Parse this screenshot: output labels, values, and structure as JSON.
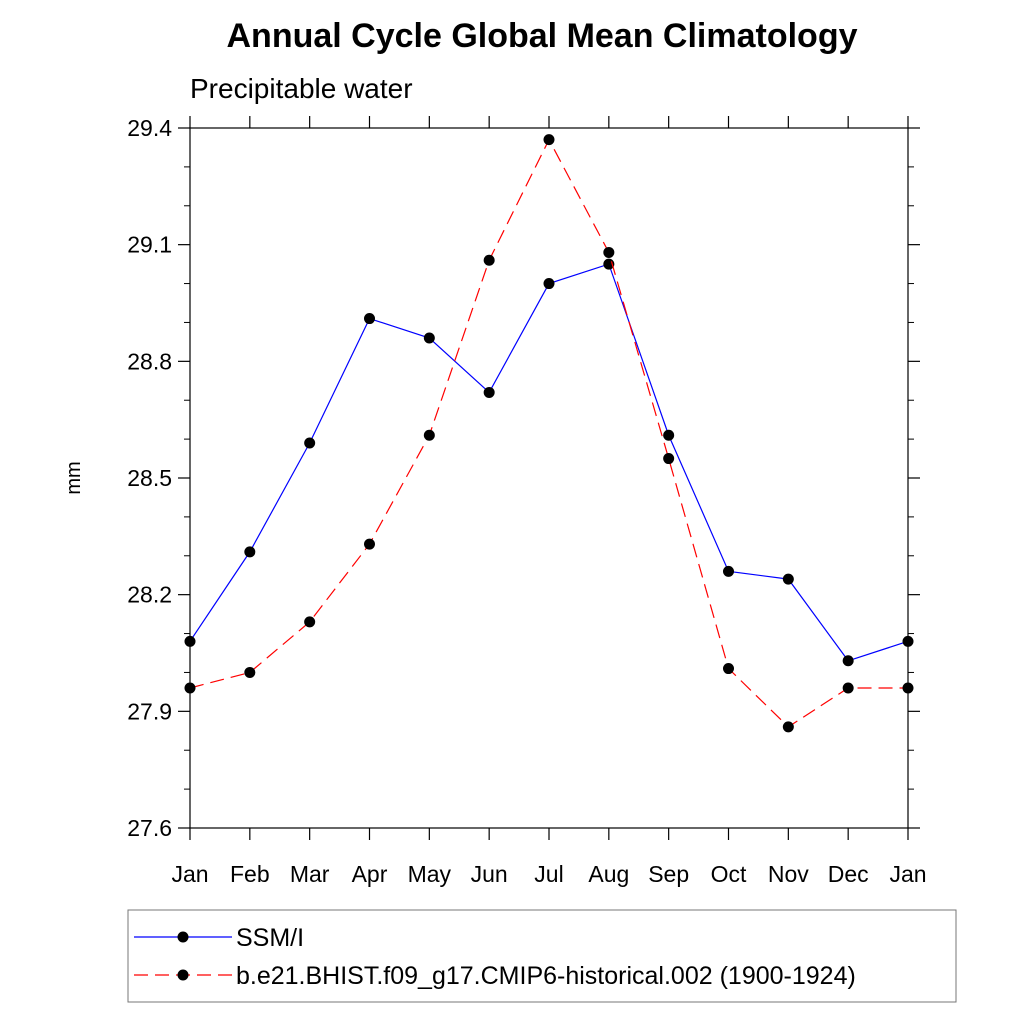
{
  "chart_data": {
    "type": "line",
    "title": "Annual Cycle Global Mean Climatology",
    "subtitle": "Precipitable water",
    "xlabel": "",
    "ylabel": "mm",
    "categories": [
      "Jan",
      "Feb",
      "Mar",
      "Apr",
      "May",
      "Jun",
      "Jul",
      "Aug",
      "Sep",
      "Oct",
      "Nov",
      "Dec",
      "Jan"
    ],
    "ylim": [
      27.6,
      29.4
    ],
    "yticks": [
      "27.6",
      "27.9",
      "28.2",
      "28.5",
      "28.8",
      "29.1",
      "29.4"
    ],
    "series": [
      {
        "name": "SSM/I",
        "color": "#0000ff",
        "dash": "solid",
        "values": [
          28.08,
          28.31,
          28.59,
          28.91,
          28.86,
          28.72,
          29.0,
          29.05,
          28.61,
          28.26,
          28.24,
          28.03,
          28.08
        ]
      },
      {
        "name": "b.e21.BHIST.f09_g17.CMIP6-historical.002 (1900-1924)",
        "color": "#ff0000",
        "dash": "dashed",
        "values": [
          27.96,
          28.0,
          28.13,
          28.33,
          28.61,
          29.06,
          29.37,
          29.08,
          28.55,
          28.01,
          27.86,
          27.96,
          27.96
        ]
      }
    ],
    "legend_position": "bottom"
  }
}
